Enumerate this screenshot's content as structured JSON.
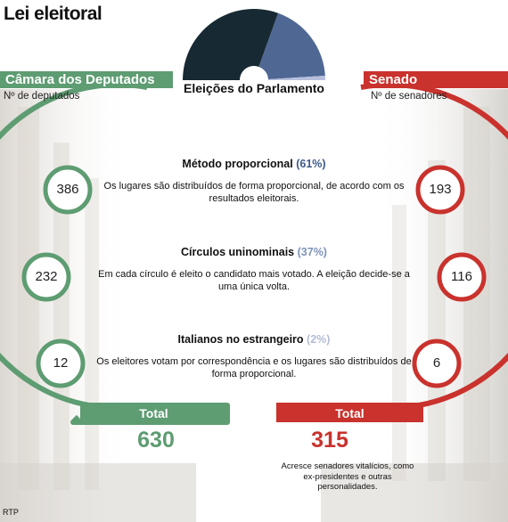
{
  "title": "Lei eleitoral",
  "center_title": "Eleições do Parlamento",
  "chambers": {
    "left": {
      "name": "Câmara dos Deputados",
      "unit": "Nº de deputados",
      "total_label": "Total",
      "total": "630",
      "color": "#5e9c72"
    },
    "right": {
      "name": "Senado",
      "unit": "Nº de senadores",
      "total_label": "Total",
      "total": "315",
      "color": "#c9322d",
      "note": "Acresce senadores vitalícios, como ex-presidentes e outras personalidades."
    }
  },
  "sections": [
    {
      "title": "Método proporcional",
      "pct": "(61%)",
      "body": "Os lugares são distribuídos de forma proporcional, de acordo com os resultados eleitorais.",
      "pct_color": "#3d5a88"
    },
    {
      "title": "Círculos uninominais",
      "pct": "(37%)",
      "body": "Em cada círculo é eleito o candidato mais votado. A eleição decide-se a uma única volta.",
      "pct_color": "#7e93b8"
    },
    {
      "title": "Italianos no estrangeiro",
      "pct": "(2%)",
      "body": "Os eleitores votam por correspondência e os lugares são distribuídos de forma proporcional.",
      "pct_color": "#b3bdd6"
    }
  ],
  "credit": "RTP",
  "chart_data": {
    "type": "pie",
    "categories": [
      "Método proporcional",
      "Círculos uninominais",
      "Italianos no estrangeiro"
    ],
    "values": [
      61,
      37,
      2
    ],
    "unit": "%",
    "colors": [
      "#172a33",
      "#4f6793",
      "#b7bfdc"
    ],
    "series": [
      {
        "name": "Câmara dos Deputados",
        "values": [
          386,
          232,
          12
        ],
        "total": 630
      },
      {
        "name": "Senado",
        "values": [
          193,
          116,
          6
        ],
        "total": 315
      }
    ]
  }
}
